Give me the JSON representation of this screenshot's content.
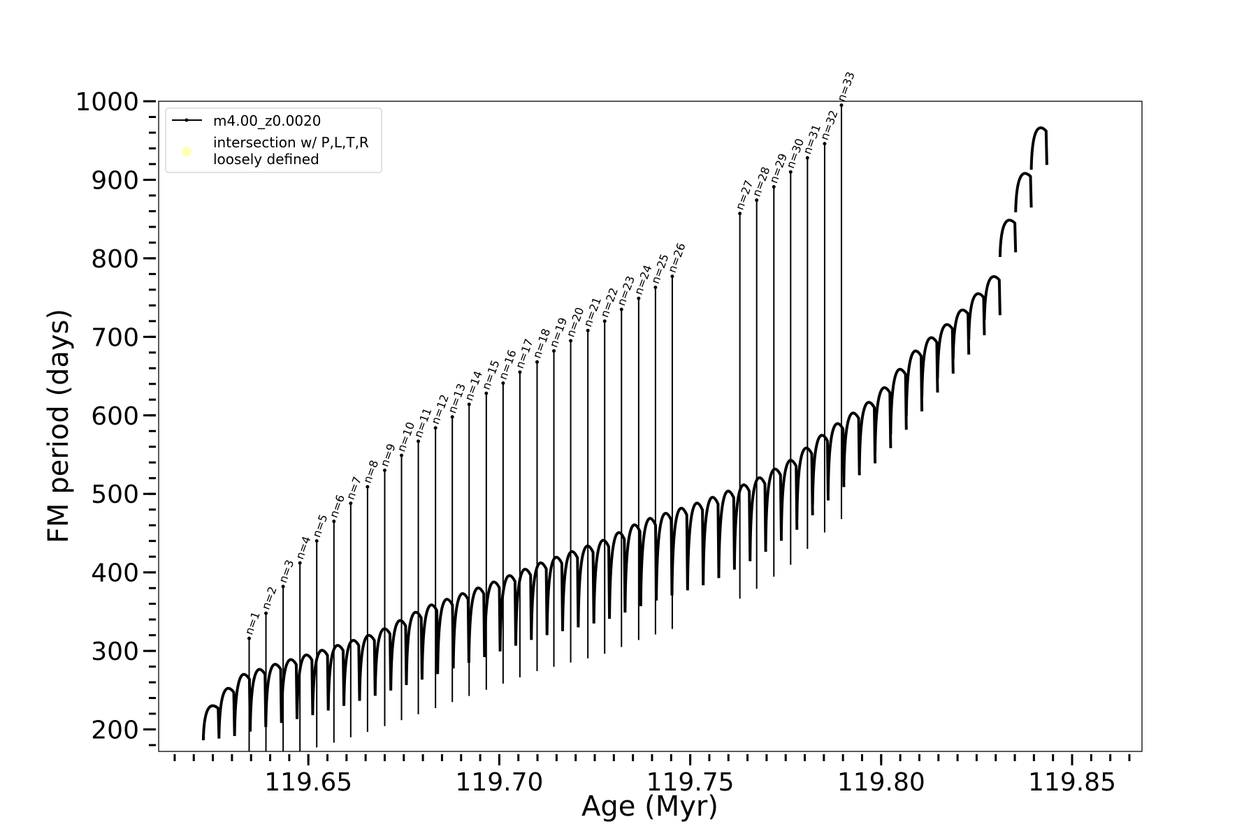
{
  "chart_data": {
    "type": "line",
    "xlabel": "Age (Myr)",
    "ylabel": "FM period (days)",
    "xlim": [
      119.6108,
      119.8683
    ],
    "ylim": [
      172,
      1000
    ],
    "x_major_ticks": [
      119.65,
      119.7,
      119.75,
      119.8,
      119.85
    ],
    "x_tick_labels": [
      "119.65",
      "119.70",
      "119.75",
      "119.80",
      "119.85"
    ],
    "x_minor_step": 0.005,
    "y_major_ticks": [
      200,
      300,
      400,
      500,
      600,
      700,
      800,
      900,
      1000
    ],
    "y_tick_labels": [
      "200",
      "300",
      "400",
      "500",
      "600",
      "700",
      "800",
      "900",
      "1000"
    ],
    "y_minor_step": 20,
    "legend": {
      "placement": "top-left",
      "entries": [
        {
          "label": "m4.00_z0.0020",
          "marker": "line-dot",
          "color": "#000000"
        },
        {
          "label_lines": [
            "intersection w/ P,L,T,R",
            "loosely defined"
          ],
          "marker": "circle",
          "color": "#ffff99"
        }
      ]
    },
    "series": [
      {
        "name": "m4.00_z0.0020",
        "color": "#000000",
        "cycles": {
          "start_age": 119.6225,
          "end_age": 119.8434,
          "count": 54,
          "peak_age": [
            119.6225,
            119.6316,
            119.6424,
            119.6547,
            119.6675,
            119.6804,
            119.6963,
            119.7103,
            119.7269,
            119.7371,
            119.7529,
            119.7662,
            119.7764,
            119.7861,
            119.7983,
            119.8088,
            119.819,
            119.829,
            119.8336,
            119.8434
          ],
          "peak_period": [
            222,
            275,
            292,
            310,
            330,
            364,
            392,
            420,
            450,
            475,
            500,
            525,
            552,
            590,
            630,
            690,
            730,
            780,
            860,
            1000
          ],
          "trough_period": [
            185,
            190,
            205,
            220,
            240,
            262,
            290,
            315,
            335,
            355,
            380,
            415,
            450,
            495,
            540,
            600,
            660,
            720,
            810,
            940
          ]
        }
      }
    ],
    "annotations": [
      {
        "label": "n=1",
        "x": 119.6345,
        "y": 316
      },
      {
        "label": "n=2",
        "x": 119.6389,
        "y": 348
      },
      {
        "label": "n=3",
        "x": 119.6434,
        "y": 382
      },
      {
        "label": "n=4",
        "x": 119.6478,
        "y": 412
      },
      {
        "label": "n=5",
        "x": 119.6522,
        "y": 440
      },
      {
        "label": "n=6",
        "x": 119.6567,
        "y": 465
      },
      {
        "label": "n=7",
        "x": 119.6611,
        "y": 488
      },
      {
        "label": "n=8",
        "x": 119.6655,
        "y": 509
      },
      {
        "label": "n=9",
        "x": 119.67,
        "y": 530
      },
      {
        "label": "n=10",
        "x": 119.6744,
        "y": 549
      },
      {
        "label": "n=11",
        "x": 119.6788,
        "y": 567
      },
      {
        "label": "n=12",
        "x": 119.6833,
        "y": 584
      },
      {
        "label": "n=13",
        "x": 119.6877,
        "y": 598
      },
      {
        "label": "n=14",
        "x": 119.6921,
        "y": 614
      },
      {
        "label": "n=15",
        "x": 119.6966,
        "y": 628
      },
      {
        "label": "n=16",
        "x": 119.701,
        "y": 641
      },
      {
        "label": "n=17",
        "x": 119.7054,
        "y": 655
      },
      {
        "label": "n=18",
        "x": 119.7099,
        "y": 668
      },
      {
        "label": "n=19",
        "x": 119.7143,
        "y": 682
      },
      {
        "label": "n=20",
        "x": 119.7187,
        "y": 695
      },
      {
        "label": "n=21",
        "x": 119.7232,
        "y": 708
      },
      {
        "label": "n=22",
        "x": 119.7276,
        "y": 720
      },
      {
        "label": "n=23",
        "x": 119.732,
        "y": 735
      },
      {
        "label": "n=24",
        "x": 119.7365,
        "y": 749
      },
      {
        "label": "n=25",
        "x": 119.7409,
        "y": 763
      },
      {
        "label": "n=26",
        "x": 119.7453,
        "y": 777
      },
      {
        "label": "n=27",
        "x": 119.763,
        "y": 857
      },
      {
        "label": "n=28",
        "x": 119.7674,
        "y": 874
      },
      {
        "label": "n=29",
        "x": 119.7719,
        "y": 891
      },
      {
        "label": "n=30",
        "x": 119.7763,
        "y": 910
      },
      {
        "label": "n=31",
        "x": 119.7807,
        "y": 928
      },
      {
        "label": "n=32",
        "x": 119.7852,
        "y": 946
      },
      {
        "label": "n=33",
        "x": 119.7896,
        "y": 995
      }
    ],
    "grid": false
  }
}
